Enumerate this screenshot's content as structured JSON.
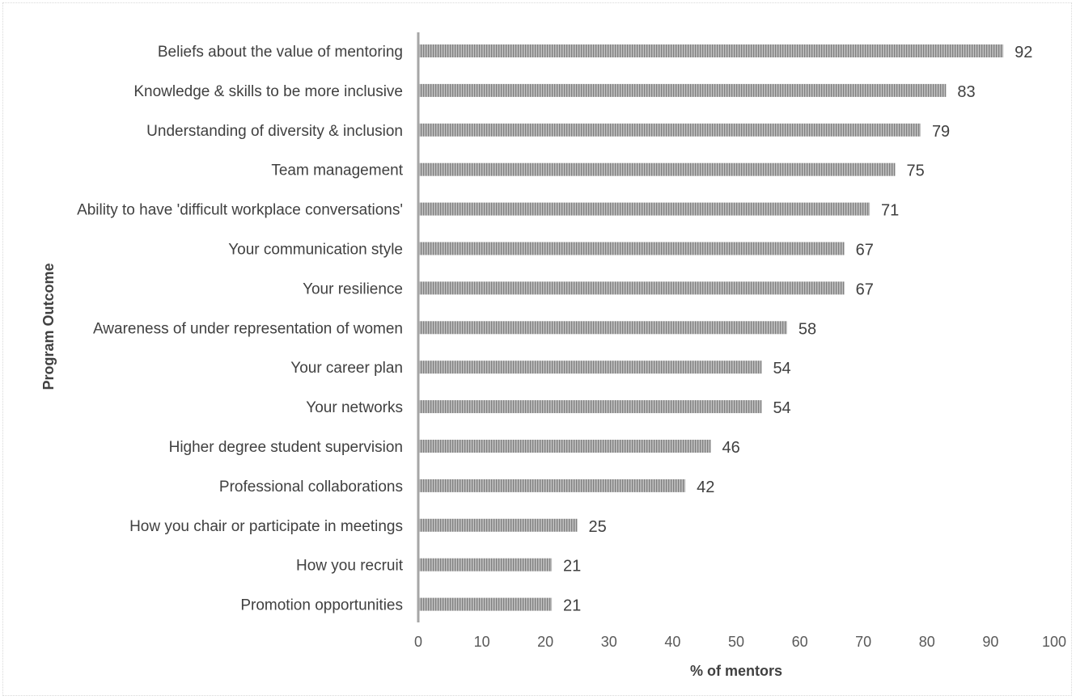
{
  "chart_data": {
    "type": "bar",
    "orientation": "horizontal",
    "categories": [
      "Beliefs about the value of mentoring",
      "Knowledge & skills to be more inclusive",
      "Understanding of diversity & inclusion",
      "Team management",
      "Ability to have 'difficult workplace conversations'",
      "Your communication style",
      "Your resilience",
      "Awareness of under representation of women",
      "Your career plan",
      "Your networks",
      "Higher degree student supervision",
      "Professional collaborations",
      "How you chair or participate in meetings",
      "How you recruit",
      "Promotion opportunities"
    ],
    "values": [
      92,
      83,
      79,
      75,
      71,
      67,
      67,
      58,
      54,
      54,
      46,
      42,
      25,
      21,
      21
    ],
    "data_labels": [
      "92",
      "83",
      "79",
      "75",
      "71",
      "67",
      "67",
      "58",
      "54",
      "54",
      "46",
      "42",
      "25",
      "21",
      "21"
    ],
    "xlabel": "% of mentors",
    "ylabel": "Program Outcome",
    "xlim": [
      0,
      100
    ],
    "xticks": [
      "0",
      "10",
      "20",
      "30",
      "40",
      "50",
      "60",
      "70",
      "80",
      "90",
      "100"
    ],
    "grid": false,
    "legend": "none",
    "colors": {
      "bar_fill": "#bfbfbf",
      "bar_stripe": "#7f7f7f",
      "axis_line": "#a6a6a6",
      "text": "#404040"
    }
  }
}
